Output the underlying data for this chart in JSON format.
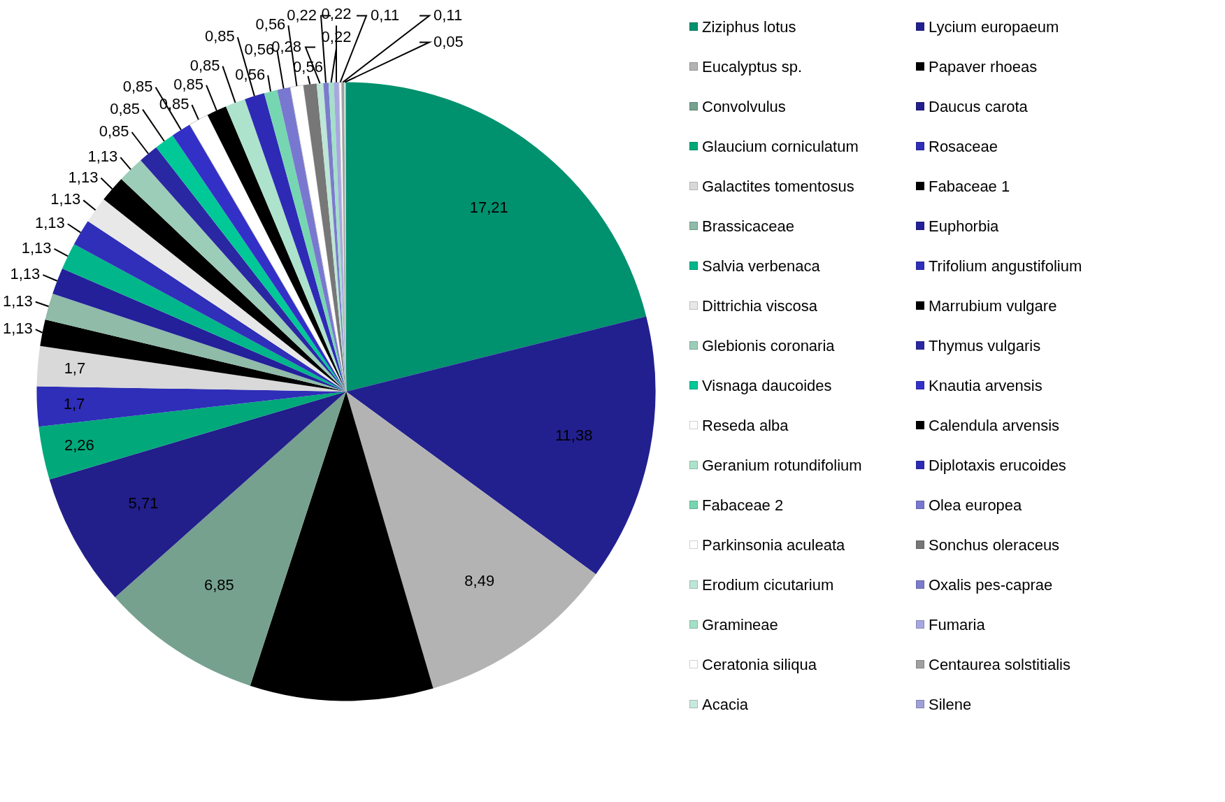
{
  "chart_data": {
    "type": "pie",
    "legend": "right",
    "categories": [
      "Ziziphus lotus",
      "Lycium europaeum",
      "Eucalyptus sp.",
      "Papaver rhoeas",
      "Convolvulus",
      "Daucus carota",
      "Glaucium corniculatum",
      "Rosaceae",
      "Galactites tomentosus",
      "Fabaceae 1",
      "Brassicaceae",
      "Euphorbia",
      "Salvia verbenaca",
      "Trifolium angustifolium",
      "Dittrichia viscosa",
      "Marrubium vulgare",
      "Glebionis coronaria",
      "Thymus vulgaris",
      "Visnaga daucoides",
      "Knautia arvensis",
      "Reseda alba",
      "Calendula arvensis",
      "Geranium rotundifolium",
      "Diplotaxis erucoides",
      "Fabaceae 2",
      "Olea europea",
      "Parkinsonia aculeata",
      "Sonchus oleraceus",
      "Erodium cicutarium",
      "Oxalis pes-caprae",
      "Gramineae",
      "Fumaria",
      "Ceratonia siliqua",
      "Centaurea solstitialis",
      "Acacia",
      "Silene"
    ],
    "values": [
      17.21,
      11.38,
      8.49,
      7.8,
      6.85,
      5.71,
      2.26,
      1.7,
      1.7,
      1.13,
      1.13,
      1.13,
      1.13,
      1.13,
      1.13,
      1.13,
      1.13,
      0.85,
      0.85,
      0.85,
      0.85,
      0.85,
      0.85,
      0.85,
      0.56,
      0.56,
      0.56,
      0.56,
      0.28,
      0.22,
      0.22,
      0.22,
      0.11,
      0.11,
      0.05,
      0.03
    ],
    "value_labels": [
      "17,21",
      "11,38",
      "8,49",
      null,
      "6,85",
      "5,71",
      "2,26",
      "1,7",
      "1,7",
      "1,13",
      "1,13",
      "1,13",
      "1,13",
      "1,13",
      "1,13",
      "1,13",
      "1,13",
      "0,85",
      "0,85",
      "0,85",
      "0,85",
      "0,85",
      "0,85",
      "0,85",
      "0,56",
      "0,56",
      "0,56",
      "0,56",
      "0,28",
      "0,22",
      "0,22",
      "0,22",
      "0,11",
      "0,11",
      "0,05",
      null
    ],
    "colors": [
      "#00916e",
      "#22208f",
      "#b3b3b3",
      "#000000",
      "#76a18f",
      "#221e8a",
      "#00a87a",
      "#2e2eb8",
      "#d9d9d9",
      "#000000",
      "#8fbba8",
      "#23209a",
      "#00b68a",
      "#2f2fba",
      "#e8e8e8",
      "#000000",
      "#9ccdb8",
      "#2a27a3",
      "#00c896",
      "#3330c8",
      "#ffffff",
      "#000000",
      "#ade3cc",
      "#2e2ab6",
      "#77d6b2",
      "#7878d0",
      "#ffffff",
      "#777777",
      "#bde6d6",
      "#7b7bcc",
      "#a3e0c8",
      "#a7a7e0",
      "#ffffff",
      "#a0a0a0",
      "#c8e8dc",
      "#a0a0d8"
    ]
  }
}
